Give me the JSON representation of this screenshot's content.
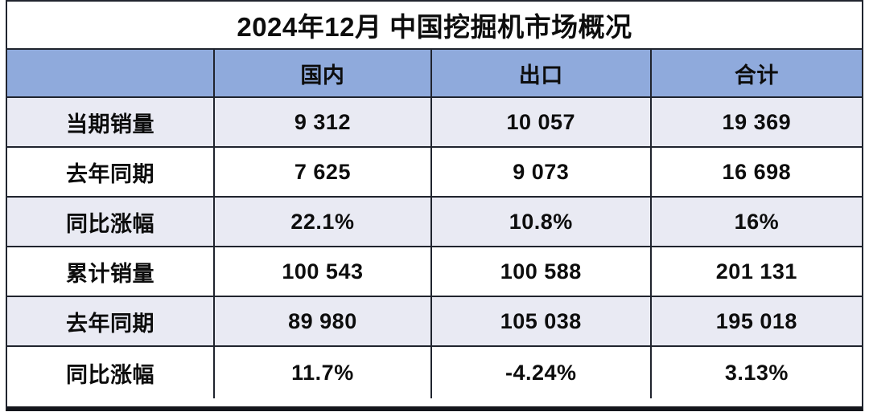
{
  "title": "2024年12月 中国挖掘机市场概况",
  "colors": {
    "header_bg": "#8FAADC",
    "alt_row_bg": "#E9EAF3",
    "plain_row_bg": "#FFFFFF",
    "border": "#20242E",
    "text": "#0D0D0D"
  },
  "chart_data": {
    "type": "table",
    "title": "2024年12月 中国挖掘机市场概况",
    "columns": [
      "",
      "国内",
      "出口",
      "合计"
    ],
    "rows": [
      {
        "label": "当期销量",
        "values": [
          "9 312",
          "10 057",
          "19 369"
        ]
      },
      {
        "label": "去年同期",
        "values": [
          "7 625",
          "9 073",
          "16 698"
        ]
      },
      {
        "label": "同比涨幅",
        "values": [
          "22.1%",
          "10.8%",
          "16%"
        ]
      },
      {
        "label": "累计销量",
        "values": [
          "100 543",
          "100 588",
          "201 131"
        ]
      },
      {
        "label": "去年同期",
        "values": [
          "89 980",
          "105 038",
          "195 018"
        ]
      },
      {
        "label": "同比涨幅",
        "values": [
          "11.7%",
          "-4.24%",
          "3.13%"
        ]
      }
    ]
  }
}
